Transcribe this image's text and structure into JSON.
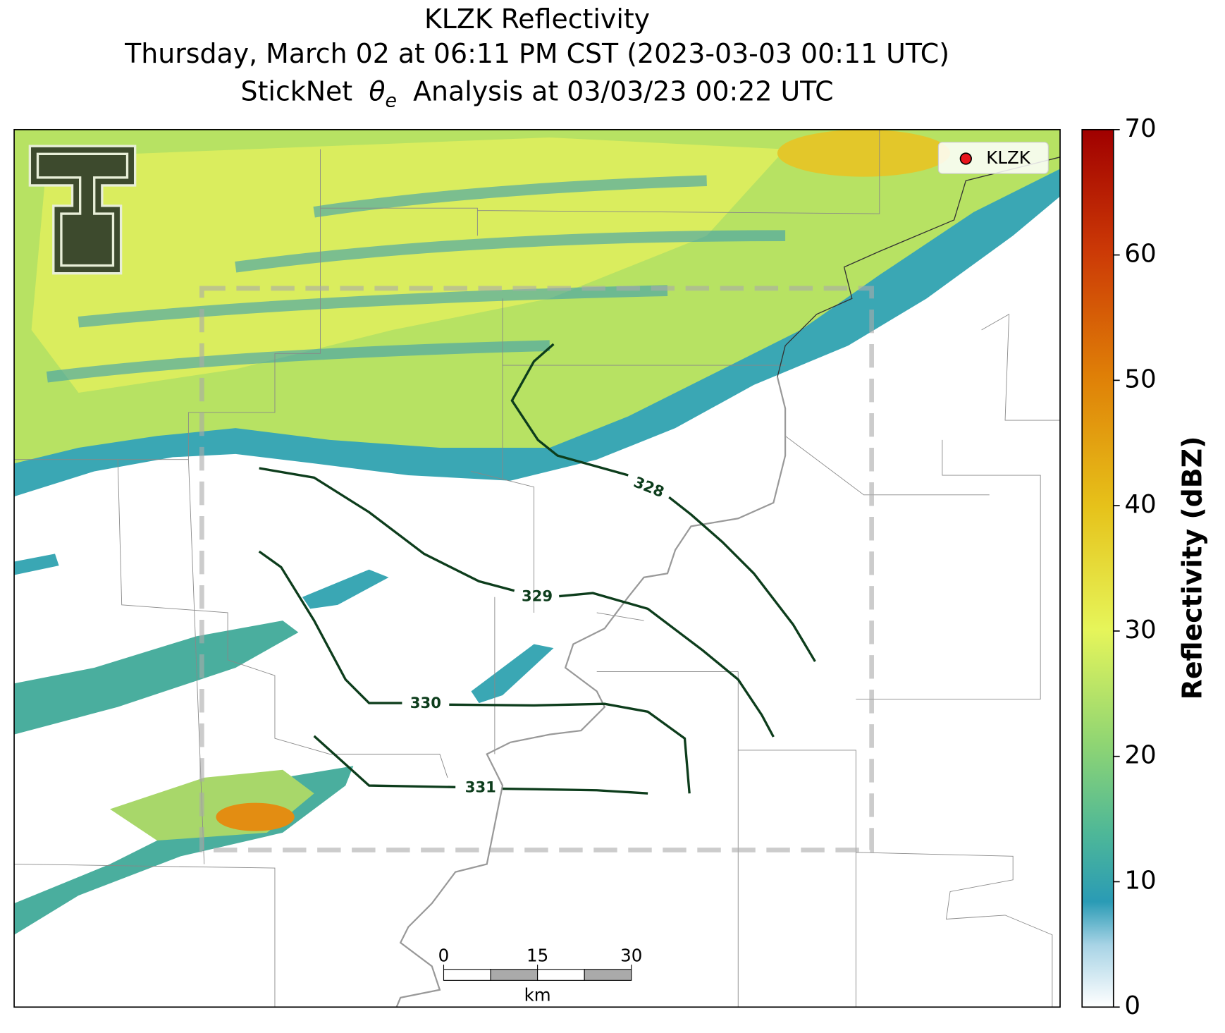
{
  "title": {
    "line1": "KLZK Reflectivity",
    "line2": "Thursday, March 02 at 06:11 PM CST (2023-03-03 00:11 UTC)",
    "line3_prefix": "StickNet",
    "line3_symbol": "θ",
    "line3_subscript": "e",
    "line3_suffix": "Analysis at 03/03/23 00:22 UTC"
  },
  "legend": {
    "label": "KLZK",
    "color": "#e8141c"
  },
  "contours": [
    {
      "label": 328
    },
    {
      "label": 329
    },
    {
      "label": 330
    },
    {
      "label": 331
    }
  ],
  "scalebar": {
    "lim": [
      0,
      30
    ],
    "ticks": [
      0,
      15,
      30
    ],
    "unit": "km"
  },
  "colorbar": {
    "label": "Reflectivity (dBZ)",
    "lim": [
      0,
      70
    ],
    "ticks": [
      0,
      10,
      20,
      30,
      40,
      50,
      60,
      70
    ]
  }
}
